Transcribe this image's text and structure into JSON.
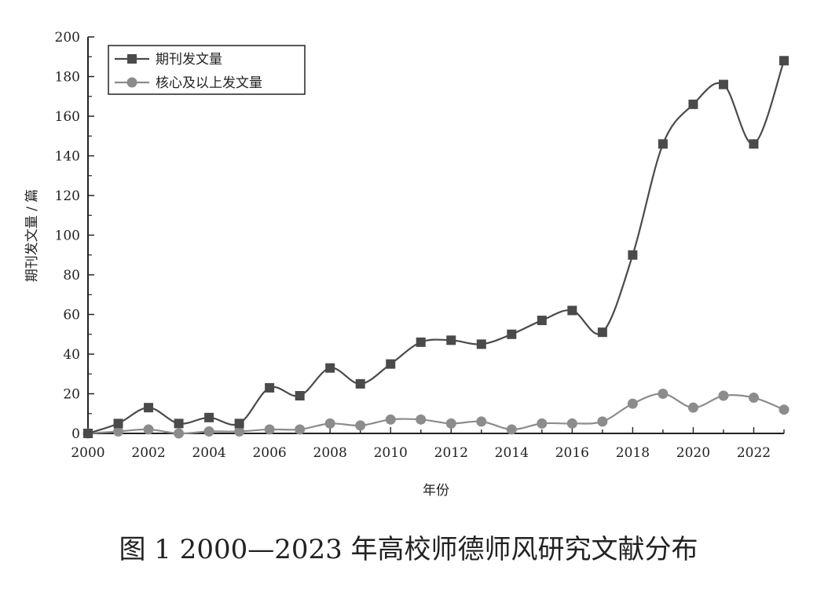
{
  "caption": "图 1   2000—2023 年高校师德师风研究文献分布",
  "chart_data": {
    "type": "line",
    "xlabel": "年份",
    "ylabel": "期刊发文量 / 篇",
    "xlim": [
      2000,
      2023
    ],
    "ylim": [
      0,
      200
    ],
    "x_ticks": [
      "2000",
      "2002",
      "2004",
      "2006",
      "2008",
      "2010",
      "2012",
      "2014",
      "2016",
      "2018",
      "2020",
      "2022"
    ],
    "y_ticks": [
      "0",
      "20",
      "40",
      "60",
      "80",
      "100",
      "120",
      "140",
      "160",
      "180",
      "200"
    ],
    "x": [
      2000,
      2001,
      2002,
      2003,
      2004,
      2005,
      2006,
      2007,
      2008,
      2009,
      2010,
      2011,
      2012,
      2013,
      2014,
      2015,
      2016,
      2017,
      2018,
      2019,
      2020,
      2021,
      2022,
      2023
    ],
    "series": [
      {
        "name": "期刊发文量",
        "marker": "square",
        "color": "#4a4a4a",
        "values": [
          0,
          5,
          13,
          5,
          8,
          5,
          23,
          19,
          33,
          25,
          35,
          46,
          47,
          45,
          50,
          57,
          62,
          51,
          90,
          146,
          166,
          176,
          146,
          188
        ]
      },
      {
        "name": "核心及以上发文量",
        "marker": "circle",
        "color": "#8c8c8c",
        "values": [
          0,
          1,
          2,
          0,
          1,
          1,
          2,
          2,
          5,
          4,
          7,
          7,
          5,
          6,
          2,
          5,
          5,
          6,
          15,
          20,
          13,
          19,
          18,
          12
        ]
      }
    ],
    "legend": "top-left",
    "grid": false
  }
}
